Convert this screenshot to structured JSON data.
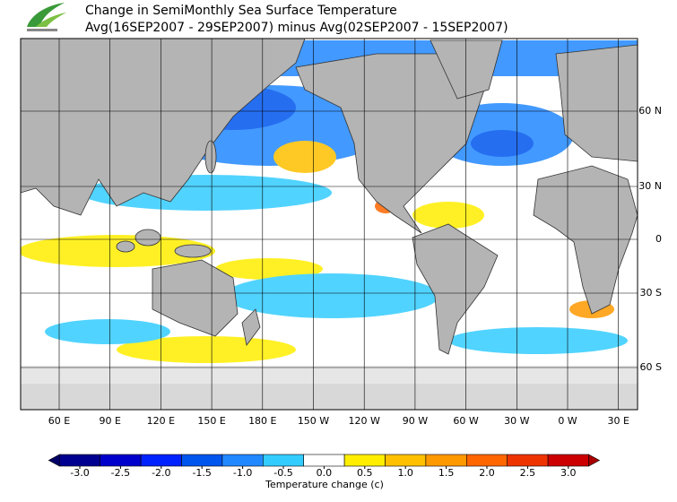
{
  "map": {
    "title": "Change in SemiMonthly Sea Surface Temperature",
    "subtitle": "Avg(16SEP2007 - 29SEP2007) minus Avg(02SEP2007 - 15SEP2007)",
    "lon_labels": [
      "60 E",
      "90 E",
      "120 E",
      "150 E",
      "180 E",
      "150 W",
      "120 W",
      "90 W",
      "60 W",
      "30 W",
      "0 W",
      "30 E"
    ],
    "lat_labels": [
      "60 N",
      "30 N",
      "0",
      "30 S",
      "60 S"
    ],
    "colorbar": {
      "label": "Temperature change  (c)",
      "ticks": [
        {
          "value": -3.0,
          "label": "-3.0"
        },
        {
          "value": -2.5,
          "label": "-2.5"
        },
        {
          "value": -2.0,
          "label": "-2.0"
        },
        {
          "value": -1.5,
          "label": "-1.5"
        },
        {
          "value": -1.0,
          "label": "-1.0"
        },
        {
          "value": -0.5,
          "label": "-0.5"
        },
        {
          "value": 0.0,
          "label": "0.0"
        },
        {
          "value": 0.5,
          "label": "0.5"
        },
        {
          "value": 1.0,
          "label": "1.0"
        },
        {
          "value": 1.5,
          "label": "1.5"
        },
        {
          "value": 2.0,
          "label": "2.0"
        },
        {
          "value": 2.5,
          "label": "2.5"
        },
        {
          "value": 3.0,
          "label": "3.0"
        }
      ],
      "colors": [
        "#000090",
        "#0000cc",
        "#0022ff",
        "#0055ee",
        "#2288ff",
        "#33ccff",
        "#ffffff",
        "#ffee00",
        "#ffc000",
        "#ff9900",
        "#ff6600",
        "#ee3300",
        "#cc0000"
      ],
      "under_color": "#000066",
      "over_color": "#aa0000"
    }
  }
}
